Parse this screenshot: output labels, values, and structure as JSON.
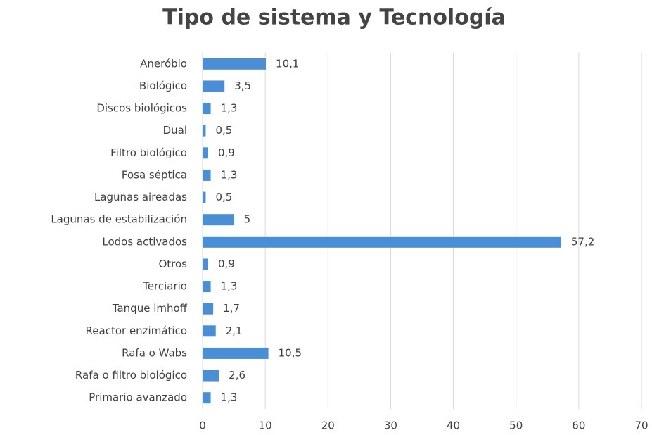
{
  "chart_data": {
    "type": "bar",
    "orientation": "horizontal",
    "title": "Tipo de sistema y Tecnología",
    "categories": [
      "Aneróbio",
      "Biológico",
      "Discos biológicos",
      "Dual",
      "Filtro biológico",
      "Fosa séptica",
      "Lagunas aireadas",
      "Lagunas de estabilización",
      "Lodos activados",
      "Otros",
      "Terciario",
      "Tanque imhoff",
      "Reactor enzimático",
      "Rafa o Wabs",
      "Rafa o filtro biológico",
      "Primario avanzado"
    ],
    "values": [
      10.1,
      3.5,
      1.3,
      0.5,
      0.9,
      1.3,
      0.5,
      5,
      57.2,
      0.9,
      1.3,
      1.7,
      2.1,
      10.5,
      2.6,
      1.3
    ],
    "value_labels": [
      "10,1",
      "3,5",
      "1,3",
      "0,5",
      "0,9",
      "1,3",
      "0,5",
      "5",
      "57,2",
      "0,9",
      "1,3",
      "1,7",
      "2,1",
      "10,5",
      "2,6",
      "1,3"
    ],
    "color": "#4a8fd6",
    "xlim": [
      0,
      70
    ],
    "xticks": [
      0,
      10,
      20,
      30,
      40,
      50,
      60,
      70
    ],
    "grid": true
  }
}
